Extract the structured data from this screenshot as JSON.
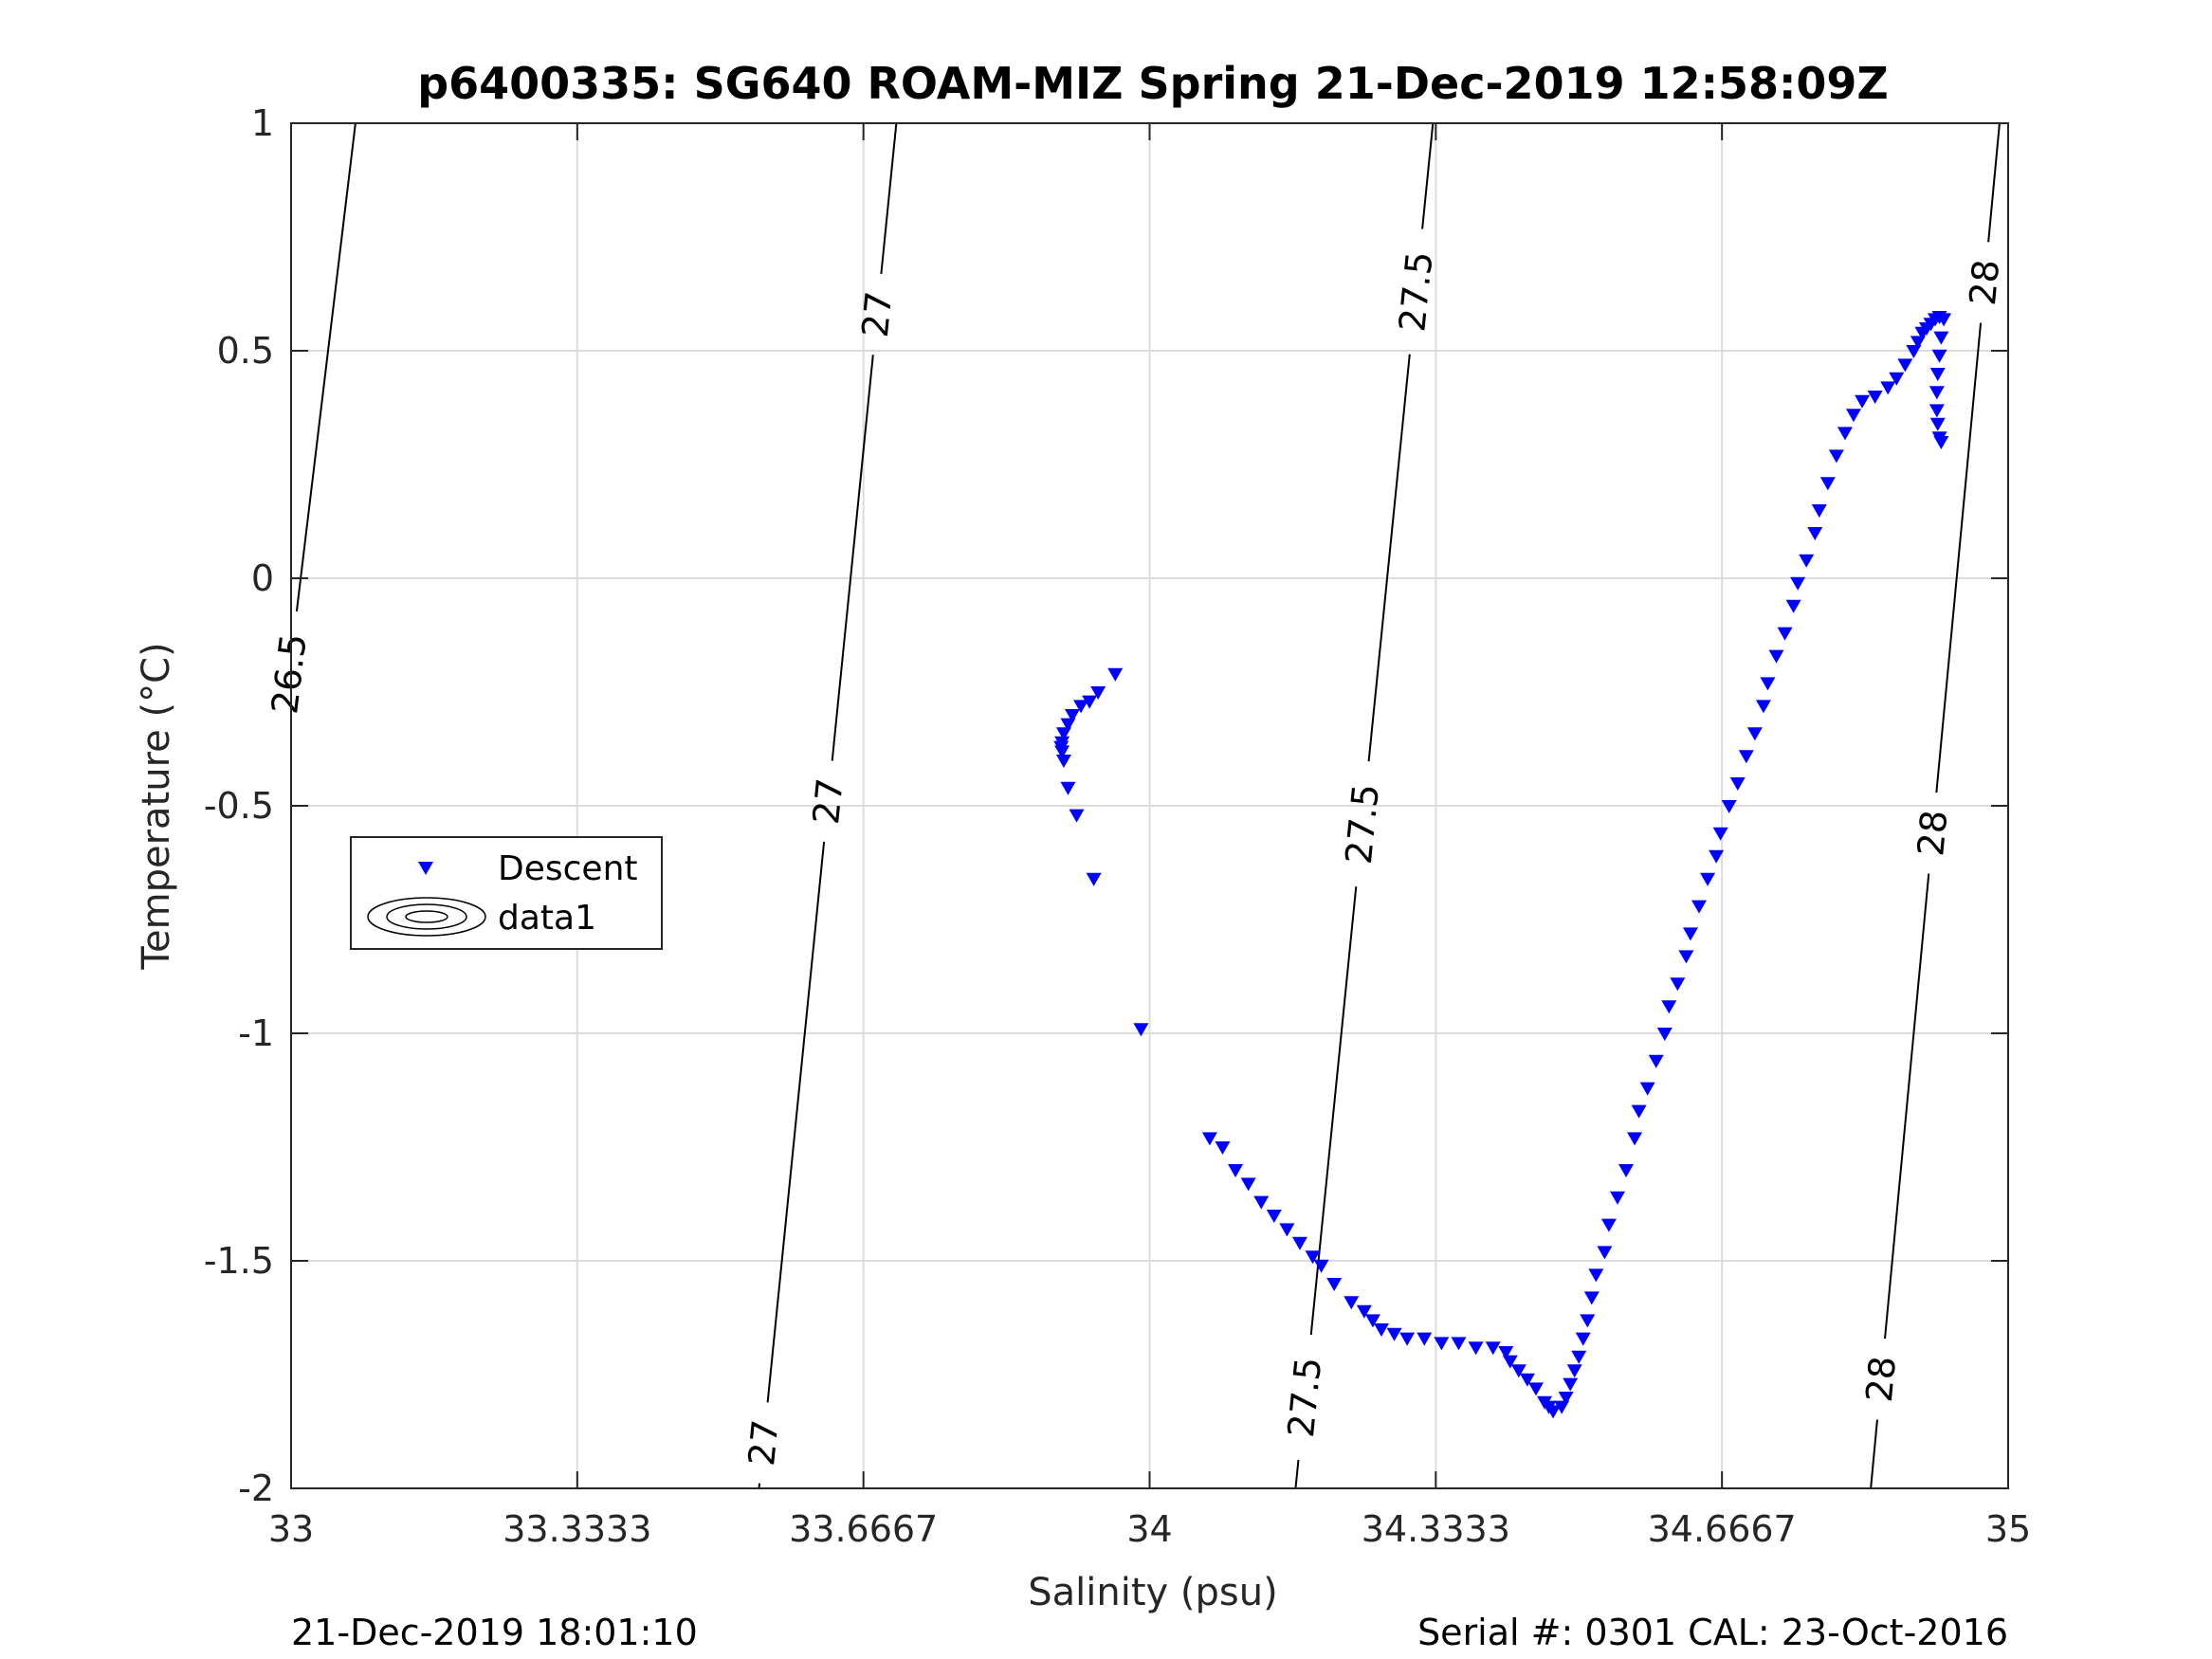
{
  "chart_data": {
    "type": "scatter",
    "title": "p6400335: SG640 ROAM-MIZ Spring 21-Dec-2019 12:58:09Z",
    "xlabel": "Salinity (psu)",
    "ylabel": "Temperature (°C)",
    "xlim": [
      33,
      35
    ],
    "ylim": [
      -2,
      1
    ],
    "x_ticks": [
      "33",
      "33.3333",
      "33.6667",
      "34",
      "34.3333",
      "34.6667",
      "35"
    ],
    "y_ticks": [
      "1",
      "0.5",
      "0",
      "-0.5",
      "-1",
      "-1.5",
      "-2"
    ],
    "grid": true,
    "legend": {
      "placement": "left",
      "entries": [
        "Descent",
        "data1"
      ]
    },
    "series": [
      {
        "name": "Descent",
        "marker": "down-triangle",
        "color": "#0000ff",
        "points": [
          [
            33.96,
            -0.21
          ],
          [
            33.94,
            -0.25
          ],
          [
            33.93,
            -0.27
          ],
          [
            33.92,
            -0.28
          ],
          [
            33.91,
            -0.3
          ],
          [
            33.905,
            -0.32
          ],
          [
            33.9,
            -0.34
          ],
          [
            33.898,
            -0.36
          ],
          [
            33.897,
            -0.37
          ],
          [
            33.898,
            -0.38
          ],
          [
            33.9,
            -0.4
          ],
          [
            33.905,
            -0.46
          ],
          [
            33.915,
            -0.52
          ],
          [
            33.935,
            -0.66
          ],
          [
            33.99,
            -0.99
          ],
          [
            34.07,
            -1.23
          ],
          [
            34.085,
            -1.25
          ],
          [
            34.1,
            -1.3
          ],
          [
            34.115,
            -1.33
          ],
          [
            34.13,
            -1.37
          ],
          [
            34.145,
            -1.4
          ],
          [
            34.16,
            -1.43
          ],
          [
            34.175,
            -1.46
          ],
          [
            34.19,
            -1.49
          ],
          [
            34.2,
            -1.51
          ],
          [
            34.215,
            -1.55
          ],
          [
            34.235,
            -1.59
          ],
          [
            34.25,
            -1.61
          ],
          [
            34.26,
            -1.63
          ],
          [
            34.27,
            -1.65
          ],
          [
            34.285,
            -1.66
          ],
          [
            34.3,
            -1.67
          ],
          [
            34.32,
            -1.67
          ],
          [
            34.34,
            -1.68
          ],
          [
            34.36,
            -1.68
          ],
          [
            34.38,
            -1.69
          ],
          [
            34.4,
            -1.69
          ],
          [
            34.415,
            -1.7
          ],
          [
            34.42,
            -1.72
          ],
          [
            34.43,
            -1.74
          ],
          [
            34.44,
            -1.76
          ],
          [
            34.45,
            -1.78
          ],
          [
            34.46,
            -1.81
          ],
          [
            34.465,
            -1.82
          ],
          [
            34.47,
            -1.83
          ],
          [
            34.48,
            -1.82
          ],
          [
            34.485,
            -1.8
          ],
          [
            34.49,
            -1.77
          ],
          [
            34.495,
            -1.74
          ],
          [
            34.5,
            -1.71
          ],
          [
            34.505,
            -1.67
          ],
          [
            34.51,
            -1.63
          ],
          [
            34.515,
            -1.58
          ],
          [
            34.52,
            -1.53
          ],
          [
            34.53,
            -1.48
          ],
          [
            34.535,
            -1.42
          ],
          [
            34.545,
            -1.36
          ],
          [
            34.555,
            -1.3
          ],
          [
            34.565,
            -1.23
          ],
          [
            34.57,
            -1.17
          ],
          [
            34.58,
            -1.12
          ],
          [
            34.59,
            -1.06
          ],
          [
            34.6,
            -1.0
          ],
          [
            34.605,
            -0.94
          ],
          [
            34.615,
            -0.89
          ],
          [
            34.625,
            -0.83
          ],
          [
            34.63,
            -0.78
          ],
          [
            34.64,
            -0.72
          ],
          [
            34.65,
            -0.66
          ],
          [
            34.66,
            -0.61
          ],
          [
            34.665,
            -0.56
          ],
          [
            34.675,
            -0.5
          ],
          [
            34.685,
            -0.45
          ],
          [
            34.695,
            -0.39
          ],
          [
            34.705,
            -0.34
          ],
          [
            34.715,
            -0.28
          ],
          [
            34.72,
            -0.23
          ],
          [
            34.73,
            -0.17
          ],
          [
            34.74,
            -0.12
          ],
          [
            34.75,
            -0.06
          ],
          [
            34.755,
            -0.01
          ],
          [
            34.765,
            0.04
          ],
          [
            34.775,
            0.1
          ],
          [
            34.78,
            0.15
          ],
          [
            34.79,
            0.21
          ],
          [
            34.8,
            0.27
          ],
          [
            34.81,
            0.32
          ],
          [
            34.82,
            0.36
          ],
          [
            34.83,
            0.39
          ],
          [
            34.845,
            0.4
          ],
          [
            34.86,
            0.42
          ],
          [
            34.87,
            0.44
          ],
          [
            34.88,
            0.47
          ],
          [
            34.89,
            0.5
          ],
          [
            34.895,
            0.52
          ],
          [
            34.9,
            0.54
          ],
          [
            34.905,
            0.55
          ],
          [
            34.91,
            0.56
          ],
          [
            34.915,
            0.57
          ],
          [
            34.92,
            0.575
          ],
          [
            34.925,
            0.57
          ],
          [
            34.922,
            0.53
          ],
          [
            34.92,
            0.49
          ],
          [
            34.918,
            0.45
          ],
          [
            34.917,
            0.41
          ],
          [
            34.917,
            0.37
          ],
          [
            34.918,
            0.34
          ],
          [
            34.92,
            0.31
          ],
          [
            34.922,
            0.3
          ]
        ]
      }
    ],
    "contours": [
      {
        "label": "26.5",
        "labels_at": [
          -0.21
        ]
      },
      {
        "label": "27",
        "labels_at": [
          -1.9,
          -0.49,
          0.58
        ]
      },
      {
        "label": "27.5",
        "labels_at": [
          -1.8,
          -0.54,
          0.63
        ]
      },
      {
        "label": "28",
        "labels_at": [
          -1.76,
          -0.56,
          0.65
        ]
      }
    ]
  },
  "footer": {
    "left": "21-Dec-2019 18:01:10",
    "right": "Serial #: 0301  CAL: 23-Oct-2016"
  }
}
